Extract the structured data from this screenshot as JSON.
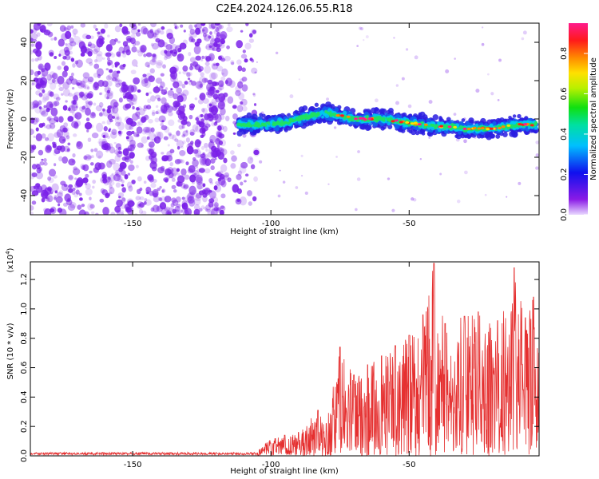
{
  "title": "C2E4.2024.126.06.55.R18",
  "colors": {
    "snr_line": "#e53030",
    "noise_purple": "#7a1fe8",
    "axes": "#000000"
  },
  "chart_data": [
    {
      "type": "heatmap",
      "xlabel": "Height of straight line (km)",
      "ylabel": "Frequency (Hz)",
      "xlim": [
        -187,
        -3
      ],
      "ylim": [
        -50,
        50
      ],
      "xticks": [
        -150,
        -100,
        -50
      ],
      "yticks": [
        -40,
        -20,
        0,
        20,
        40
      ],
      "colorbar": {
        "label": "Normalized spectral amplitude",
        "range": [
          0,
          0.95
        ],
        "ticks": [
          0.0,
          0.2,
          0.4,
          0.6,
          0.8
        ],
        "colormap": "rainbow (purple-blue-cyan-green-yellow-orange-red-magenta)"
      },
      "noise_region_x": [
        -187,
        -105
      ],
      "track": {
        "x": [
          -110,
          -100,
          -95,
          -90,
          -85,
          -80,
          -75,
          -70,
          -65,
          -60,
          -55,
          -50,
          -45,
          -40,
          -35,
          -30,
          -25,
          -20,
          -15,
          -10,
          -5
        ],
        "y": [
          -3,
          -3,
          -2,
          0,
          2,
          3,
          2,
          0,
          0,
          0,
          -1,
          -2,
          -3,
          -4,
          -4,
          -5,
          -5,
          -5,
          -4,
          -3,
          -3
        ]
      }
    },
    {
      "type": "line",
      "xlabel": "Height of straight line (km)",
      "ylabel": "SNR (10 * v/v)",
      "multiplier": "(x10",
      "multiplier_exp": "4",
      "multiplier_close": ")",
      "xlim": [
        -187,
        -3
      ],
      "ylim": [
        0,
        1.32
      ],
      "xticks": [
        -150,
        -100,
        -50
      ],
      "yticks": [
        0.0,
        0.2,
        0.4,
        0.6,
        0.8,
        1.0,
        1.2
      ],
      "series": [
        {
          "peaks_x": [
            -187,
            -120,
            -105,
            -100,
            -95,
            -90,
            -83,
            -80,
            -75,
            -70,
            -65,
            -60,
            -55,
            -50,
            -45,
            -41,
            -37,
            -30,
            -25,
            -18,
            -12,
            -8,
            -5,
            -3
          ],
          "peaks_y": [
            0.02,
            0.02,
            0.03,
            0.12,
            0.14,
            0.16,
            0.31,
            0.22,
            0.74,
            0.55,
            0.62,
            0.68,
            0.75,
            0.82,
            0.96,
            1.31,
            0.9,
            0.95,
            0.98,
            0.92,
            1.28,
            0.94,
            1.08,
            0.7
          ]
        }
      ]
    }
  ]
}
